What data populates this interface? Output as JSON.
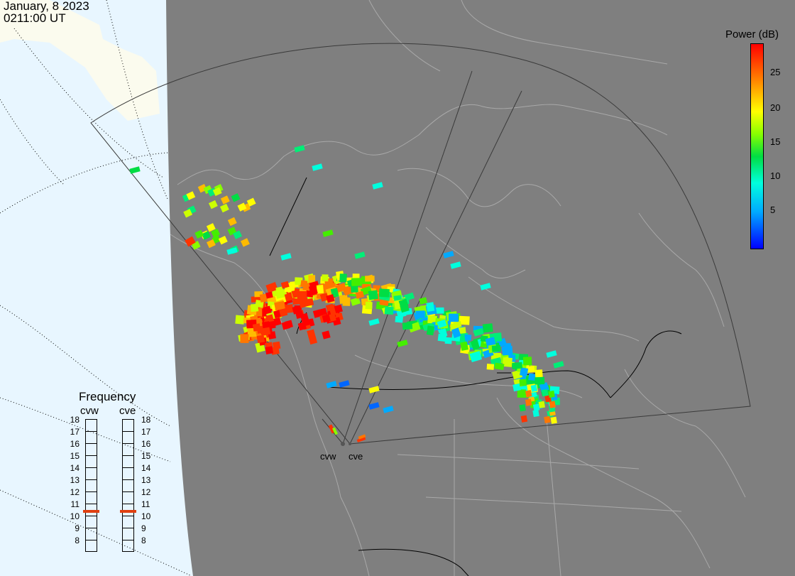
{
  "header": {
    "date": "January, 8 2023",
    "time": "0211:00 UT"
  },
  "legend": {
    "title": "Power (dB)",
    "ticks": [
      "25",
      "20",
      "15",
      "10",
      "5"
    ],
    "colors": [
      "#ff0000",
      "#ff7700",
      "#ffff00",
      "#88ff00",
      "#00dd44",
      "#00ffdd",
      "#00aaff",
      "#0000ff"
    ]
  },
  "frequency": {
    "title": "Frequency",
    "radars": [
      {
        "name": "cvw",
        "selected": 11
      },
      {
        "name": "cve",
        "selected": 11
      }
    ],
    "scale": [
      "18",
      "17",
      "16",
      "15",
      "14",
      "13",
      "12",
      "11",
      "10",
      "9",
      "8"
    ],
    "indicator_color": "#e04010"
  },
  "sites": [
    "cvw",
    "cve"
  ],
  "colors": {
    "background": "#7f7f7f",
    "land_outline": "#a9a9a9",
    "polar_sky": "#e8f6ff",
    "sunlit": "#fbfbee"
  }
}
